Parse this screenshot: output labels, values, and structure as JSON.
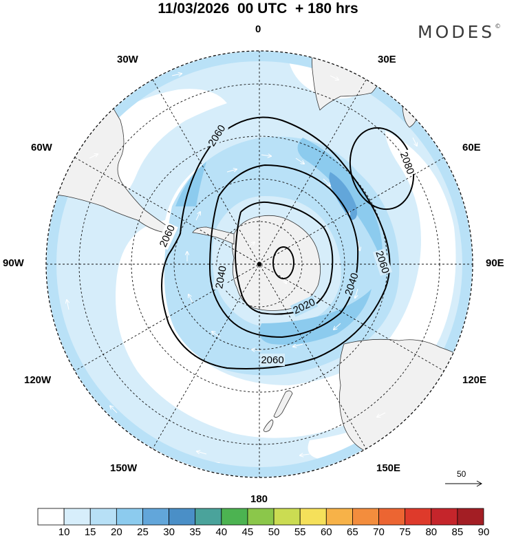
{
  "header": {
    "title": "11/03/2026  00 UTC  + 180 hrs",
    "brand": "MODES",
    "brand_mark": "©"
  },
  "map": {
    "projection": "south-polar-stereographic",
    "longitude_labels": {
      "lon_0": "0",
      "lon_30e": "30E",
      "lon_60e": "60E",
      "lon_90e": "90E",
      "lon_120e": "120E",
      "lon_150e": "150E",
      "lon_180": "180",
      "lon_150w": "150W",
      "lon_120w": "120W",
      "lon_90w": "90W",
      "lon_60w": "60W",
      "lon_30w": "30W"
    },
    "contour_labels": {
      "c2060_west_upper": "2060",
      "c2060_west_lower": "2060",
      "c2060_east": "2060",
      "c2060_south": "2060",
      "c2080": "2080",
      "c2040_west": "2040",
      "c2040_east": "2040",
      "c2020": "2020"
    },
    "wind_scale_reference": "50"
  },
  "colorbar": {
    "colors": [
      "#ffffff",
      "#d7eefb",
      "#b7e0f6",
      "#8ccbee",
      "#62a6da",
      "#4a8fc7",
      "#4aa39b",
      "#4cb351",
      "#8bc74a",
      "#cbdc52",
      "#f5e05a",
      "#f7b248",
      "#f38d3d",
      "#ec6532",
      "#de3a2b",
      "#c5252b",
      "#a31e24"
    ],
    "ticks": [
      "10",
      "15",
      "20",
      "25",
      "30",
      "35",
      "40",
      "45",
      "50",
      "55",
      "60",
      "65",
      "70",
      "75",
      "80",
      "85",
      "90"
    ]
  }
}
